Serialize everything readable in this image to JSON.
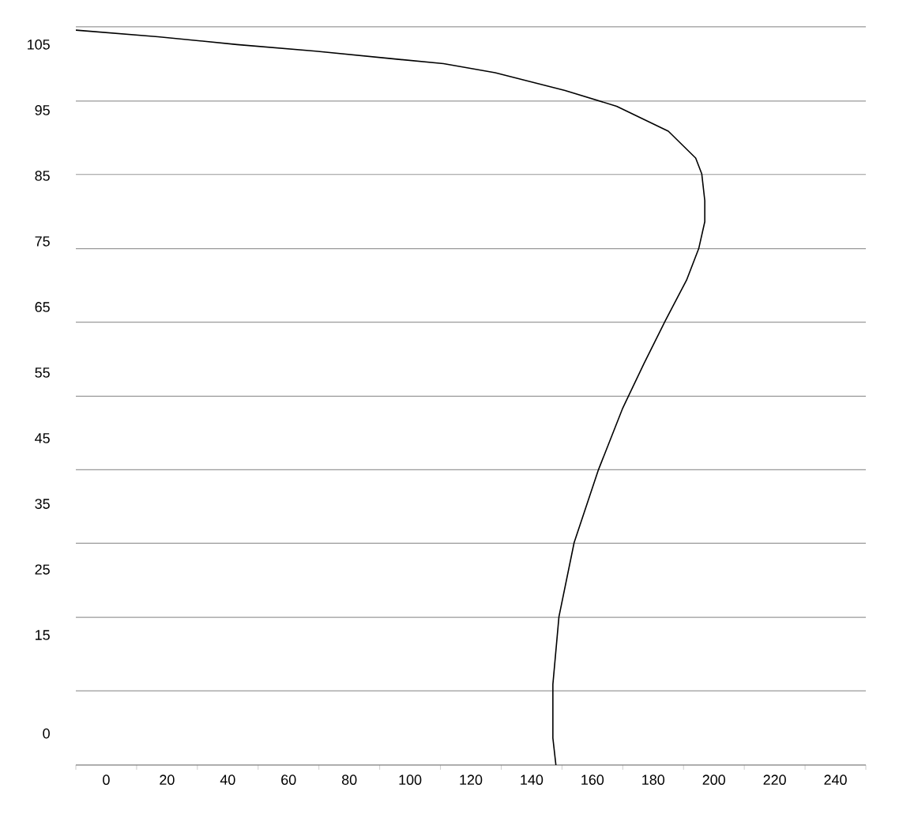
{
  "chart_data": {
    "type": "line",
    "color": "#000000",
    "grid": "y",
    "x": [
      -10,
      17,
      43,
      69,
      95,
      111,
      128,
      151,
      168,
      185,
      194,
      196,
      197,
      197,
      195,
      191,
      184,
      177,
      170,
      162,
      154,
      149,
      147,
      147,
      148
    ],
    "values": [
      107.2,
      106.2,
      105.0,
      104.0,
      102.8,
      102.1,
      100.7,
      98.0,
      95.6,
      91.8,
      87.7,
      85.3,
      81.2,
      78.0,
      73.9,
      69.1,
      62.9,
      56.4,
      49.6,
      40.2,
      29.1,
      17.8,
      7.5,
      -0.7,
      -4.8
    ],
    "xlim": [
      -10,
      250
    ],
    "ylim": [
      -4.8,
      107.7
    ],
    "xticks": [
      {
        "value": -10,
        "label": null
      },
      {
        "value": 10,
        "label": null
      },
      {
        "value": 30,
        "label": null
      },
      {
        "value": 50,
        "label": null
      },
      {
        "value": 70,
        "label": null
      },
      {
        "value": 90,
        "label": null
      },
      {
        "value": 110,
        "label": null
      },
      {
        "value": 130,
        "label": null
      },
      {
        "value": 150,
        "label": null
      },
      {
        "value": 170,
        "label": null
      },
      {
        "value": 190,
        "label": null
      },
      {
        "value": 210,
        "label": null
      },
      {
        "value": 230,
        "label": null
      },
      {
        "value": 250,
        "label": null
      },
      0,
      20,
      40,
      60,
      80,
      100,
      120,
      140,
      160,
      180,
      200,
      220,
      240
    ],
    "yticks": [
      {
        "value": -4.8,
        "label": null
      },
      {
        "value": 6.5,
        "label": null
      },
      {
        "value": 17.7,
        "label": null
      },
      {
        "value": 29.0,
        "label": null
      },
      {
        "value": 40.2,
        "label": null
      },
      {
        "value": 51.4,
        "label": null
      },
      {
        "value": 62.7,
        "label": null
      },
      {
        "value": 73.9,
        "label": null
      },
      {
        "value": 85.2,
        "label": null
      },
      {
        "value": 96.4,
        "label": null
      },
      {
        "value": 107.7,
        "label": null
      },
      0,
      15,
      25,
      35,
      45,
      55,
      65,
      75,
      85,
      95,
      105
    ]
  }
}
